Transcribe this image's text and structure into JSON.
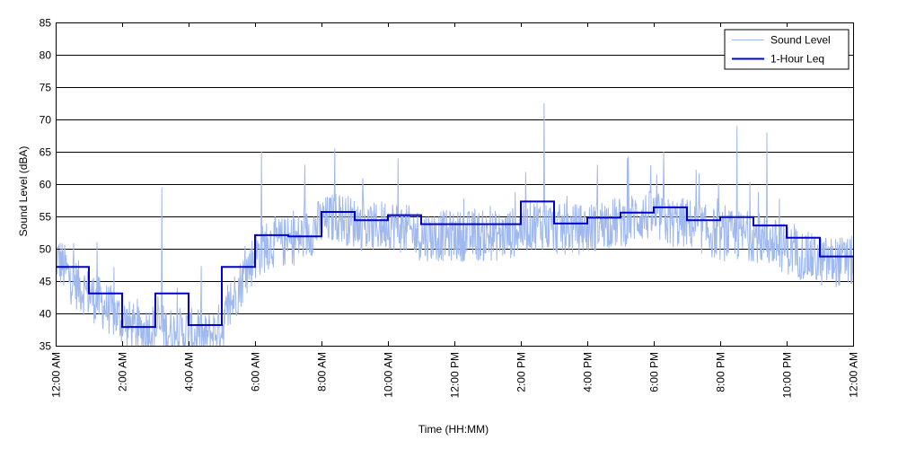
{
  "chart_data": {
    "type": "line",
    "xlabel": "Time (HH:MM)",
    "ylabel": "Sound Level (dBA)",
    "ylim": [
      35,
      85
    ],
    "yticks": [
      35,
      40,
      45,
      50,
      55,
      60,
      65,
      70,
      75,
      80,
      85
    ],
    "xlim_hours": [
      0,
      24
    ],
    "xticks": [
      {
        "hour": 0,
        "label": "12:00 AM"
      },
      {
        "hour": 2,
        "label": "2:00 AM"
      },
      {
        "hour": 4,
        "label": "4:00 AM"
      },
      {
        "hour": 6,
        "label": "6:00 AM"
      },
      {
        "hour": 8,
        "label": "8:00 AM"
      },
      {
        "hour": 10,
        "label": "10:00 AM"
      },
      {
        "hour": 12,
        "label": "12:00 PM"
      },
      {
        "hour": 14,
        "label": "2:00 PM"
      },
      {
        "hour": 16,
        "label": "4:00 PM"
      },
      {
        "hour": 18,
        "label": "6:00 PM"
      },
      {
        "hour": 20,
        "label": "8:00 PM"
      },
      {
        "hour": 22,
        "label": "10:00 PM"
      },
      {
        "hour": 24,
        "label": "12:00 AM"
      }
    ],
    "grid": "horizontal",
    "legend_position": "top-right",
    "series": [
      {
        "name": "Sound Level",
        "color": "#9fb8ee",
        "style": "thin line, dense fluctuating measurements",
        "x_hours": [
          0,
          0.5,
          1,
          1.5,
          2,
          2.5,
          3,
          3.5,
          4,
          4.5,
          5,
          5.5,
          6,
          6.5,
          7,
          7.5,
          8,
          8.5,
          9,
          9.5,
          10,
          10.5,
          11,
          11.5,
          12,
          12.5,
          13,
          13.5,
          14,
          14.5,
          15,
          15.5,
          16,
          16.5,
          17,
          17.5,
          18,
          18.5,
          19,
          19.5,
          20,
          20.5,
          21,
          21.5,
          22,
          22.5,
          23,
          23.5,
          24
        ],
        "values": [
          49,
          45,
          43,
          41,
          39,
          37,
          38,
          37,
          37,
          36,
          38,
          44,
          49,
          51,
          51,
          52,
          54,
          55,
          54,
          53,
          54,
          53,
          52,
          52,
          52,
          52,
          52,
          52,
          53,
          54,
          53,
          53,
          53,
          54,
          54,
          55,
          55,
          54,
          54,
          53,
          52,
          52,
          52,
          51,
          50,
          49,
          48,
          48,
          48
        ],
        "peaks": [
          {
            "hour": 1.25,
            "value": 51
          },
          {
            "hour": 3.2,
            "value": 59.5
          },
          {
            "hour": 6.2,
            "value": 65
          },
          {
            "hour": 7.5,
            "value": 63
          },
          {
            "hour": 8.4,
            "value": 65.5
          },
          {
            "hour": 10.3,
            "value": 64
          },
          {
            "hour": 14.7,
            "value": 72.5
          },
          {
            "hour": 16.3,
            "value": 63
          },
          {
            "hour": 17.2,
            "value": 64
          },
          {
            "hour": 18.3,
            "value": 65
          },
          {
            "hour": 20.5,
            "value": 69
          },
          {
            "hour": 21.4,
            "value": 68
          }
        ]
      },
      {
        "name": "1-Hour Leq",
        "color": "#0000cc",
        "style": "step",
        "hour_start": [
          0,
          1,
          2,
          3,
          4,
          5,
          6,
          7,
          8,
          9,
          10,
          11,
          12,
          13,
          14,
          15,
          16,
          17,
          18,
          19,
          20,
          21,
          22,
          23
        ],
        "values": [
          47.2,
          43.1,
          37.9,
          43.1,
          38.2,
          47.2,
          52.1,
          51.9,
          55.7,
          54.4,
          55.2,
          53.8,
          53.8,
          53.8,
          57.3,
          53.9,
          54.8,
          55.6,
          56.4,
          54.4,
          54.9,
          53.6,
          51.7,
          48.8
        ]
      }
    ]
  }
}
